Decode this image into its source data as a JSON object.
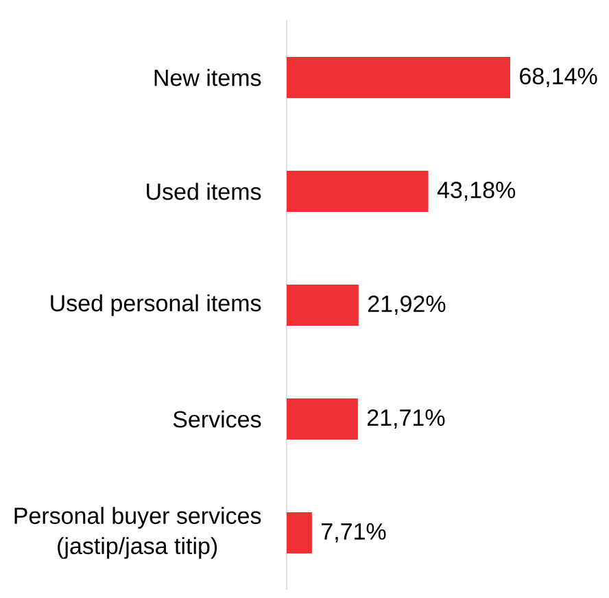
{
  "chart_data": {
    "type": "bar",
    "orientation": "horizontal",
    "categories": [
      "New items",
      "Used items",
      "Used personal items",
      "Services",
      "Personal buyer services (jastip/jasa titip)"
    ],
    "values": [
      68.14,
      43.18,
      21.92,
      21.71,
      7.71
    ],
    "value_labels": [
      "68,14%",
      "43,18%",
      "21,92%",
      "21,71%",
      "7,71%"
    ],
    "color": "#ef3034"
  }
}
